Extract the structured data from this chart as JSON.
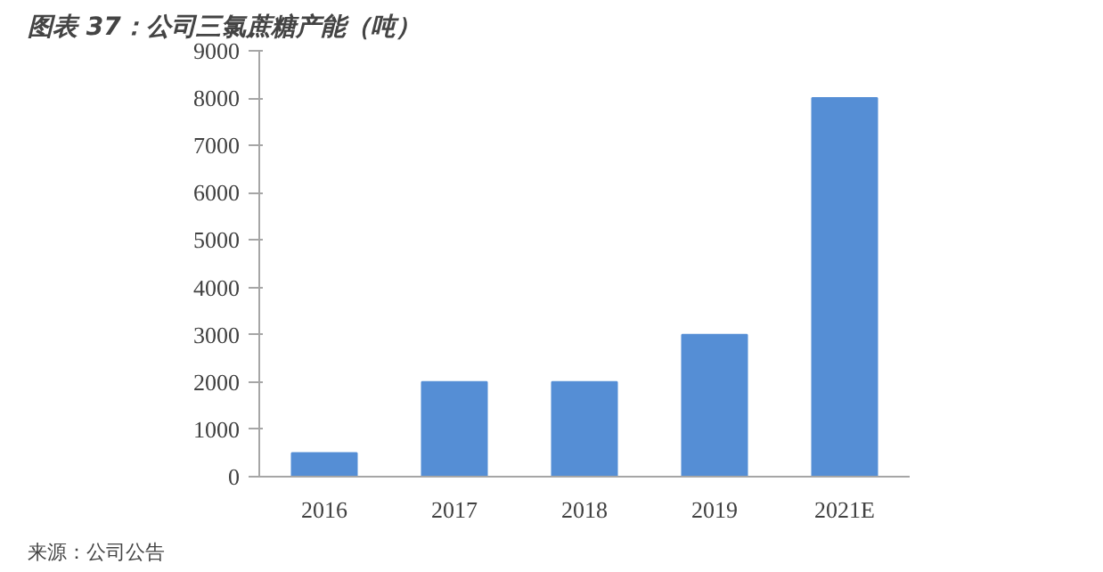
{
  "chart_data": {
    "type": "bar",
    "title": "图表 37：公司三氯蔗糖产能（吨）",
    "categories": [
      "2016",
      "2017",
      "2018",
      "2019",
      "2021E"
    ],
    "values": [
      500,
      2000,
      2000,
      3000,
      8000
    ],
    "color": "#558ed5",
    "ylim": [
      0,
      9000
    ],
    "yticks": [
      0,
      1000,
      2000,
      3000,
      4000,
      5000,
      6000,
      7000,
      8000,
      9000
    ],
    "grid": false,
    "annotations": [
      "来源：公司公告"
    ]
  }
}
